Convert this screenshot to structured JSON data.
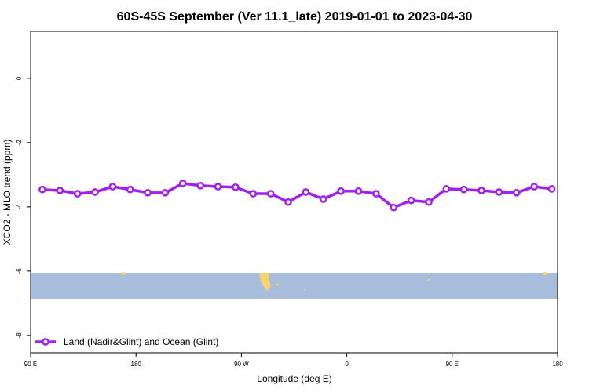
{
  "chart_data": {
    "type": "line",
    "title": "60S-45S September (Ver 11.1_late)   2019-01-01 to 2023-04-30",
    "x_label": "Longitude (deg E)",
    "y_label": "XCO2 - MLO trend (ppm)",
    "x": [
      100,
      115,
      130,
      145,
      160,
      175,
      190,
      205,
      220,
      235,
      250,
      265,
      280,
      295,
      310,
      325,
      340,
      355,
      370,
      385,
      400,
      415,
      430,
      445,
      460,
      475,
      490,
      505,
      520,
      535
    ],
    "series": [
      {
        "name": "Land (Nadir&Glint) and Ocean (Glint)",
        "color": "#a020f0",
        "values": [
          -3.46,
          -3.49,
          -3.59,
          -3.54,
          -3.37,
          -3.46,
          -3.56,
          -3.56,
          -3.27,
          -3.34,
          -3.37,
          -3.39,
          -3.59,
          -3.59,
          -3.85,
          -3.54,
          -3.76,
          -3.51,
          -3.51,
          -3.59,
          -4.02,
          -3.8,
          -3.85,
          -3.44,
          -3.46,
          -3.49,
          -3.54,
          -3.56,
          -3.37,
          -3.44
        ]
      }
    ],
    "xlim": [
      90,
      540
    ],
    "ylim": [
      -8.54,
      1.46
    ],
    "xticks": [
      {
        "value": 90,
        "label": "90 E"
      },
      180,
      {
        "value": 270,
        "label": "90 W"
      },
      {
        "value": 360,
        "label": "0"
      },
      {
        "value": 450,
        "label": "90 E"
      },
      {
        "value": 540,
        "label": "180"
      }
    ],
    "yticks": [
      0,
      -2,
      -4,
      -6,
      -8
    ],
    "legend": "bottom-left"
  }
}
